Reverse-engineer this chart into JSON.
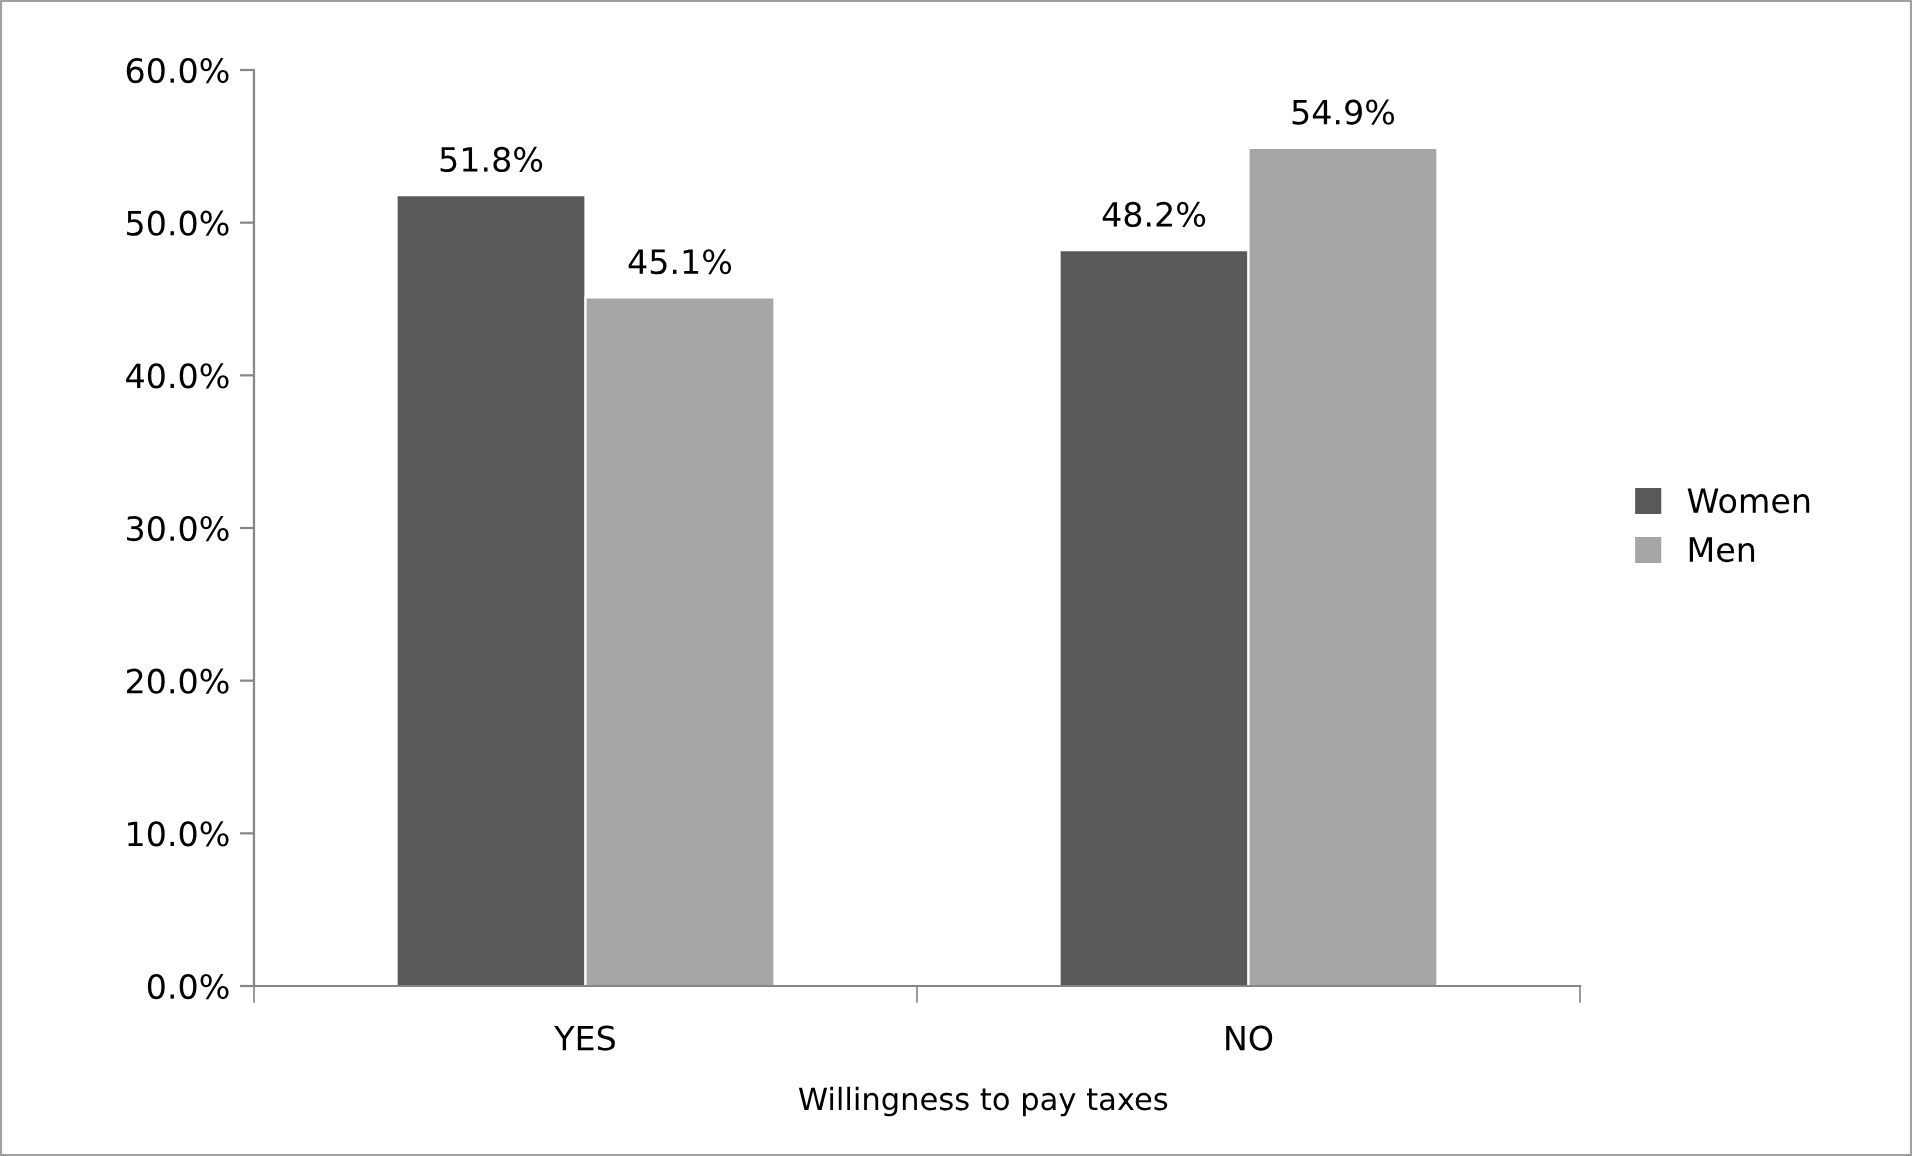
{
  "chart_data": {
    "type": "bar",
    "xlabel": "Willingness to pay taxes",
    "categories": [
      "YES",
      "NO"
    ],
    "series": [
      {
        "name": "Women",
        "color": "#595959",
        "values": [
          51.8,
          48.2
        ],
        "value_labels": [
          "51.8%",
          "48.2%"
        ]
      },
      {
        "name": "Men",
        "color": "#a6a6a6",
        "values": [
          45.1,
          54.9
        ],
        "value_labels": [
          "45.1%",
          "54.9%"
        ]
      }
    ],
    "ylim": [
      0,
      60
    ],
    "yticks": [
      {
        "value": 0,
        "label": "0.0%"
      },
      {
        "value": 10,
        "label": "10.0%"
      },
      {
        "value": 20,
        "label": "20.0%"
      },
      {
        "value": 30,
        "label": "30.0%"
      },
      {
        "value": 40,
        "label": "40.0%"
      },
      {
        "value": 50,
        "label": "50.0%"
      },
      {
        "value": 60,
        "label": "60.0%"
      }
    ],
    "grid": false,
    "legend": "right"
  }
}
